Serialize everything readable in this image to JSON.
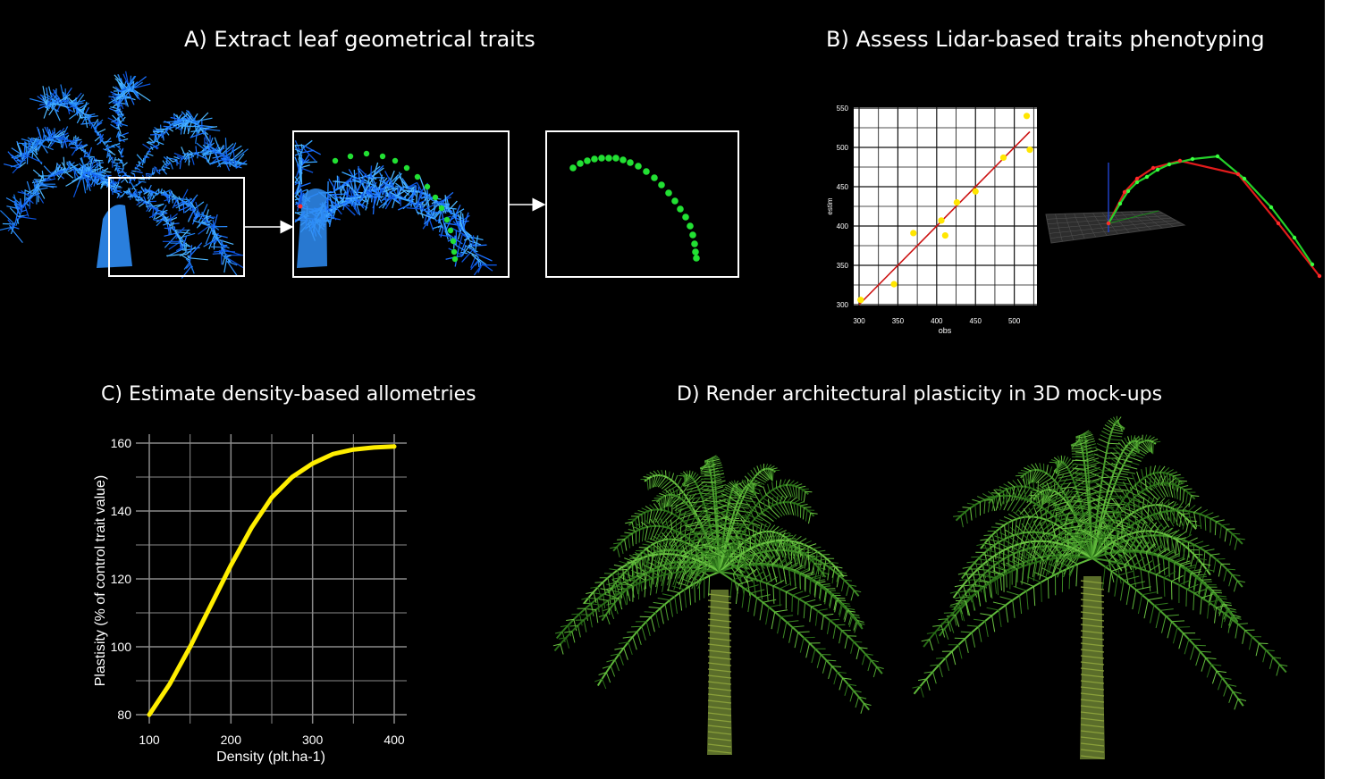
{
  "panels": {
    "a": {
      "title": "A) Extract leaf geometrical traits"
    },
    "b": {
      "title": "B) Assess Lidar-based traits phenotyping"
    },
    "c": {
      "title": "C) Estimate density-based allometries"
    },
    "d": {
      "title": "D) Render architectural plasticity in 3D mock-ups"
    }
  },
  "colors": {
    "background": "#000000",
    "lidar_points": "#1e7fff",
    "leaf_points": "#22e033",
    "scatter_points": "#ffe600",
    "fit_line": "#cc1111",
    "curve_yellow": "#ffee00",
    "tree_green": "#3d8a25"
  },
  "icons": [
    "arrow-right-icon",
    "arrow-right-icon"
  ],
  "chart_data": [
    {
      "type": "scatter",
      "panel": "B",
      "xlabel": "obs",
      "ylabel": "estim",
      "xlim": [
        300,
        525
      ],
      "ylim": [
        295,
        555
      ],
      "xticks": [
        300,
        350,
        400,
        450,
        500
      ],
      "yticks": [
        300,
        350,
        400,
        450,
        500,
        550
      ],
      "grid": true,
      "points": [
        {
          "x": 302,
          "y": 306
        },
        {
          "x": 345,
          "y": 326
        },
        {
          "x": 370,
          "y": 391
        },
        {
          "x": 406,
          "y": 407
        },
        {
          "x": 411,
          "y": 388
        },
        {
          "x": 426,
          "y": 430
        },
        {
          "x": 450,
          "y": 444
        },
        {
          "x": 486,
          "y": 487
        },
        {
          "x": 516,
          "y": 540
        },
        {
          "x": 520,
          "y": 497
        }
      ],
      "fit_line": [
        {
          "x": 300,
          "y": 300
        },
        {
          "x": 520,
          "y": 520
        }
      ]
    },
    {
      "type": "line",
      "panel": "C",
      "xlabel": "Density (plt.ha-1)",
      "ylabel": "Plastisity (% of control trait value)",
      "xlim": [
        100,
        400
      ],
      "ylim": [
        80,
        160
      ],
      "xticks": [
        100,
        200,
        300,
        400
      ],
      "yticks": [
        80,
        100,
        120,
        140,
        160
      ],
      "grid": true,
      "series": [
        {
          "x": [
            100,
            125,
            150,
            175,
            200,
            225,
            250,
            275,
            300,
            325,
            350,
            375,
            400
          ],
          "values": [
            80,
            89,
            100,
            112,
            124,
            135,
            144,
            150,
            154,
            156.8,
            158.1,
            158.7,
            159
          ]
        }
      ]
    }
  ]
}
